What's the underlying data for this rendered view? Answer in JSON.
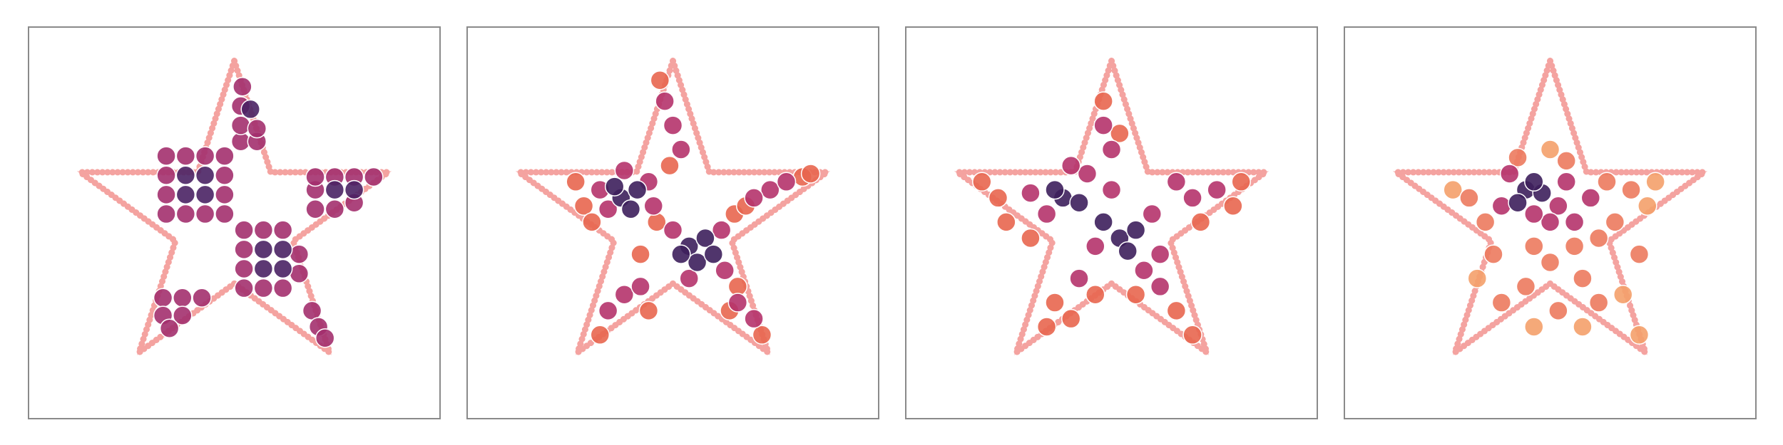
{
  "chart_data": [
    {
      "type": "scatter",
      "xlim": [
        -1.27,
        1.27
      ],
      "ylim": [
        -1.22,
        1.21
      ],
      "outline": {
        "color": "#f4a3a0",
        "x": [
          0,
          -0.225,
          -0.951,
          -0.363,
          -0.588,
          0,
          0.588,
          0.363,
          0.951,
          0.225
        ],
        "y": [
          1,
          0.309,
          0.309,
          -0.118,
          -0.809,
          -0.382,
          -0.809,
          -0.118,
          0.309,
          0.309
        ]
      },
      "series": [
        {
          "color": "#a3306e",
          "x": [
            -0.42,
            -0.3,
            -0.18,
            -0.06,
            -0.42,
            -0.06,
            -0.42,
            -0.06,
            -0.42,
            -0.3,
            -0.18,
            -0.06,
            0.06,
            0.18,
            0.3,
            0.06,
            0.06,
            0.06,
            0.18,
            0.3,
            0.4,
            0.4,
            0.5,
            0.62,
            0.5,
            0.5,
            0.62,
            0.74,
            0.86,
            0.74,
            0.04,
            0.14,
            0.04,
            0.14,
            0.04,
            0.05,
            -0.44,
            -0.32,
            -0.2,
            -0.44,
            -0.32,
            -0.4,
            0.48,
            0.52,
            0.56
          ],
          "y": [
            0.05,
            0.05,
            0.05,
            0.05,
            0.17,
            0.17,
            0.29,
            0.29,
            0.41,
            0.41,
            0.41,
            0.41,
            -0.05,
            -0.05,
            -0.05,
            -0.17,
            -0.29,
            -0.41,
            -0.41,
            -0.41,
            -0.2,
            -0.32,
            0.08,
            0.08,
            0.2,
            0.28,
            0.28,
            0.28,
            0.28,
            0.12,
            0.5,
            0.5,
            0.6,
            0.58,
            0.72,
            0.84,
            -0.47,
            -0.47,
            -0.47,
            -0.58,
            -0.58,
            -0.66,
            -0.55,
            -0.65,
            -0.72
          ]
        },
        {
          "color": "#4a2264",
          "x": [
            -0.3,
            -0.18,
            -0.3,
            -0.18,
            0.18,
            0.3,
            0.18,
            0.3,
            0.62,
            0.74,
            0.1
          ],
          "y": [
            0.17,
            0.17,
            0.29,
            0.29,
            -0.17,
            -0.17,
            -0.29,
            -0.29,
            0.2,
            0.2,
            0.7
          ]
        }
      ]
    },
    {
      "type": "scatter",
      "xlim": [
        -1.27,
        1.27
      ],
      "ylim": [
        -1.22,
        1.21
      ],
      "outline": {
        "color": "#f4a3a0",
        "x": [
          0,
          -0.225,
          -0.951,
          -0.363,
          -0.588,
          0,
          0.588,
          0.363,
          0.951,
          0.225
        ],
        "y": [
          1,
          0.309,
          0.309,
          -0.118,
          -0.809,
          -0.382,
          -0.809,
          -0.118,
          0.309,
          0.309
        ]
      },
      "series": [
        {
          "color": "#e8664f",
          "x": [
            -0.55,
            -0.6,
            -0.5,
            -0.08,
            -0.02,
            -0.1,
            0.8,
            0.85,
            0.38,
            -0.45,
            -0.15,
            0.55,
            0.35,
            0.45,
            -0.2,
            0.4
          ],
          "y": [
            0.1,
            0.25,
            0.0,
            0.88,
            0.35,
            0.0,
            0.28,
            0.3,
            0.05,
            -0.7,
            -0.55,
            -0.7,
            -0.55,
            0.1,
            -0.2,
            -0.4
          ]
        },
        {
          "color": "#b5336b",
          "x": [
            -0.45,
            -0.15,
            -0.4,
            -0.3,
            -0.12,
            0.0,
            0.32,
            0.1,
            0.3,
            0.6,
            0.7,
            0.5,
            0.05,
            0.0,
            -0.05,
            -0.3,
            -0.4,
            -0.2,
            0.4,
            0.5
          ],
          "y": [
            0.2,
            0.25,
            0.08,
            0.32,
            0.1,
            -0.05,
            -0.3,
            -0.35,
            -0.05,
            0.2,
            0.25,
            0.15,
            0.45,
            0.6,
            0.75,
            -0.45,
            -0.55,
            -0.4,
            -0.5,
            -0.6
          ]
        },
        {
          "color": "#3d1f5c",
          "x": [
            -0.32,
            -0.22,
            -0.36,
            -0.26,
            0.1,
            0.2,
            0.15,
            0.05,
            0.25
          ],
          "y": [
            0.15,
            0.2,
            0.22,
            0.08,
            -0.15,
            -0.1,
            -0.25,
            -0.2,
            -0.2
          ]
        }
      ]
    },
    {
      "type": "scatter",
      "xlim": [
        -1.27,
        1.27
      ],
      "ylim": [
        -1.22,
        1.21
      ],
      "outline": {
        "color": "#f4a3a0",
        "x": [
          0,
          -0.225,
          -0.951,
          -0.363,
          -0.588,
          0,
          0.588,
          0.363,
          0.951,
          0.225
        ],
        "y": [
          1,
          0.309,
          0.309,
          -0.118,
          -0.809,
          -0.382,
          -0.809,
          -0.118,
          0.309,
          0.309
        ]
      },
      "series": [
        {
          "color": "#e8664f",
          "x": [
            -0.7,
            -0.8,
            -0.65,
            -0.05,
            0.05,
            0.8,
            0.75,
            -0.35,
            -0.4,
            -0.25,
            0.4,
            0.5,
            0.15,
            -0.1,
            0.55,
            -0.5
          ],
          "y": [
            0.15,
            0.25,
            0.0,
            0.75,
            0.55,
            0.25,
            0.1,
            -0.5,
            -0.65,
            -0.6,
            -0.55,
            -0.7,
            -0.45,
            -0.45,
            0.0,
            -0.1
          ]
        },
        {
          "color": "#b5336b",
          "x": [
            -0.5,
            -0.15,
            -0.4,
            0.0,
            0.25,
            0.3,
            -0.1,
            0.2,
            0.5,
            0.65,
            0.0,
            -0.05,
            -0.2,
            0.3,
            -0.25,
            0.4
          ],
          "y": [
            0.18,
            0.3,
            0.05,
            0.2,
            0.05,
            -0.2,
            -0.15,
            -0.3,
            0.15,
            0.2,
            0.45,
            0.6,
            -0.35,
            -0.4,
            0.35,
            0.25
          ]
        },
        {
          "color": "#3d1f5c",
          "x": [
            -0.3,
            -0.2,
            -0.35,
            0.05,
            0.15,
            0.1,
            -0.05
          ],
          "y": [
            0.15,
            0.12,
            0.2,
            -0.1,
            -0.05,
            -0.18,
            0.0
          ]
        }
      ]
    },
    {
      "type": "scatter",
      "xlim": [
        -1.27,
        1.27
      ],
      "ylim": [
        -1.22,
        1.21
      ],
      "outline": {
        "color": "#f4a3a0",
        "x": [
          0,
          -0.225,
          -0.951,
          -0.363,
          -0.588,
          0,
          0.588,
          0.363,
          0.951,
          0.225
        ],
        "y": [
          1,
          0.309,
          0.309,
          -0.118,
          -0.809,
          -0.382,
          -0.809,
          -0.118,
          0.309,
          0.309
        ]
      },
      "series": [
        {
          "color": "#f4a06a",
          "x": [
            0.6,
            -0.6,
            0.45,
            0.55,
            -0.1,
            0.2,
            -0.45,
            0.65,
            0.0
          ],
          "y": [
            0.1,
            0.2,
            -0.45,
            -0.7,
            -0.65,
            -0.65,
            -0.35,
            0.25,
            0.45
          ]
        },
        {
          "color": "#ec7a5e",
          "x": [
            -0.4,
            0.3,
            0.35,
            -0.35,
            0.0,
            0.2,
            -0.15,
            0.4,
            -0.5,
            0.5,
            0.1,
            -0.2,
            0.05,
            0.3,
            -0.3,
            0.55,
            -0.1,
            0.15
          ],
          "y": [
            0.0,
            -0.1,
            0.25,
            -0.2,
            -0.25,
            -0.35,
            -0.4,
            0.0,
            0.15,
            0.2,
            0.38,
            0.4,
            -0.55,
            -0.5,
            -0.5,
            -0.2,
            -0.15,
            -0.15
          ]
        },
        {
          "color": "#b5336b",
          "x": [
            0.05,
            -0.3,
            0.1,
            -0.25,
            0.0,
            0.15,
            -0.1,
            0.25
          ],
          "y": [
            0.1,
            0.1,
            0.25,
            0.3,
            0.0,
            0.0,
            0.05,
            0.15
          ]
        },
        {
          "color": "#3d1f5c",
          "x": [
            -0.15,
            -0.05,
            -0.2,
            -0.1
          ],
          "y": [
            0.2,
            0.18,
            0.12,
            0.25
          ]
        }
      ]
    }
  ]
}
